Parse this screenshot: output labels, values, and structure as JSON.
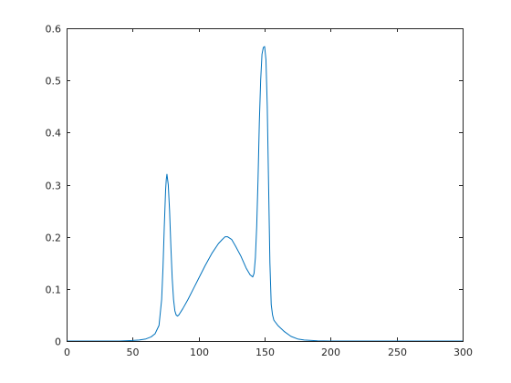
{
  "chart_data": {
    "type": "line",
    "title": "",
    "xlabel": "",
    "ylabel": "",
    "xlim": [
      0,
      300
    ],
    "ylim": [
      0,
      0.6
    ],
    "x_ticks": [
      0,
      50,
      100,
      150,
      200,
      250,
      300
    ],
    "x_tick_labels": [
      "0",
      "50",
      "100",
      "150",
      "200",
      "250",
      "300"
    ],
    "y_ticks": [
      0,
      0.1,
      0.2,
      0.3,
      0.4,
      0.5,
      0.6
    ],
    "y_tick_labels": [
      "0",
      "0.1",
      "0.2",
      "0.3",
      "0.4",
      "0.5",
      "0.6"
    ],
    "grid": false,
    "legend": "none",
    "line_color": "#0072BD",
    "series": [
      {
        "x": [
          0,
          20,
          40,
          50,
          55,
          60,
          64,
          67,
          70,
          72,
          73,
          74,
          75,
          75.5,
          76,
          77,
          78,
          79,
          80,
          81,
          82,
          83,
          84,
          85,
          88,
          92,
          96,
          100,
          105,
          110,
          115,
          118,
          120,
          122,
          125,
          128,
          132,
          136,
          139,
          141,
          142,
          143,
          144,
          145,
          146,
          147,
          148,
          149,
          150,
          151,
          152,
          153,
          154,
          155,
          156,
          157,
          160,
          165,
          170,
          175,
          180,
          190,
          200,
          250,
          300
        ],
        "y": [
          0,
          0,
          0,
          0.001,
          0.002,
          0.004,
          0.008,
          0.014,
          0.03,
          0.08,
          0.14,
          0.22,
          0.29,
          0.31,
          0.32,
          0.3,
          0.25,
          0.18,
          0.12,
          0.08,
          0.058,
          0.05,
          0.048,
          0.05,
          0.062,
          0.08,
          0.1,
          0.12,
          0.145,
          0.168,
          0.187,
          0.195,
          0.2,
          0.2,
          0.195,
          0.182,
          0.163,
          0.14,
          0.127,
          0.123,
          0.13,
          0.16,
          0.22,
          0.31,
          0.42,
          0.5,
          0.55,
          0.563,
          0.565,
          0.54,
          0.45,
          0.3,
          0.15,
          0.07,
          0.05,
          0.04,
          0.03,
          0.018,
          0.009,
          0.004,
          0.002,
          0.0005,
          0,
          0,
          0
        ]
      }
    ]
  }
}
